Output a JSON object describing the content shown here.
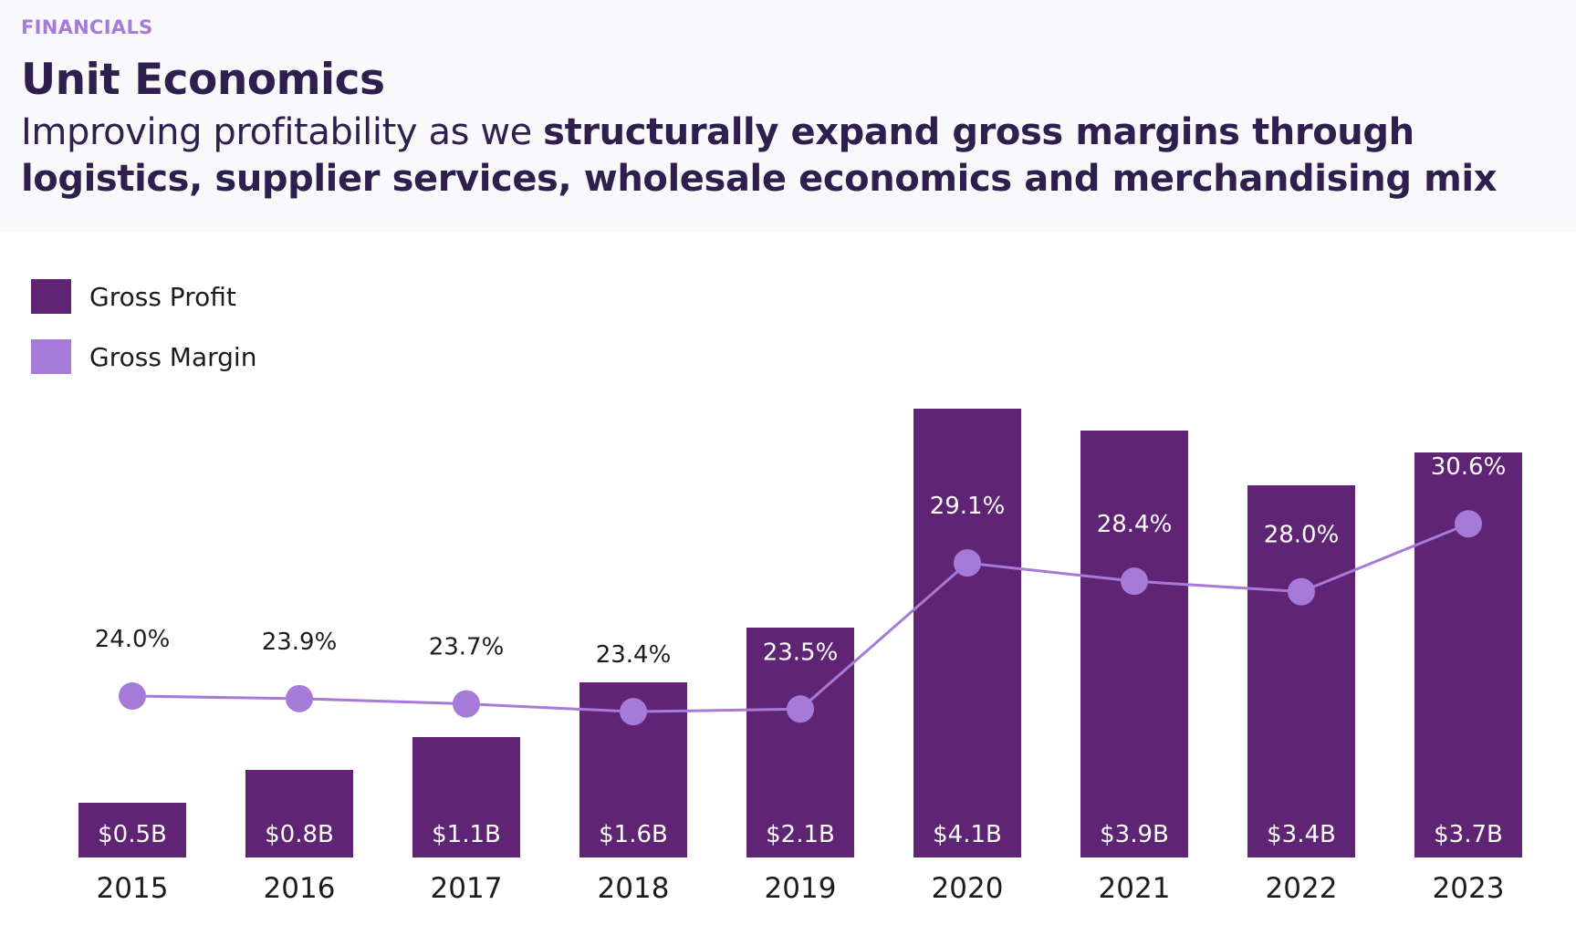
{
  "header": {
    "eyebrow": "FINANCIALS",
    "title": "Unit Economics",
    "subtitle_light": "Improving profitability as we ",
    "subtitle_bold": "structurally expand gross margins through logistics, supplier services, wholesale economics and merchandising mix"
  },
  "legend": [
    {
      "label": "Gross Profit",
      "color": "#5f2473"
    },
    {
      "label": "Gross Margin",
      "color": "#a67ad9"
    }
  ],
  "chart_data": {
    "type": "bar",
    "categories": [
      "2015",
      "2016",
      "2017",
      "2018",
      "2019",
      "2020",
      "2021",
      "2022",
      "2023"
    ],
    "series": [
      {
        "name": "Gross Profit",
        "type": "bar",
        "unit": "$B",
        "values": [
          0.5,
          0.8,
          1.1,
          1.6,
          2.1,
          4.1,
          3.9,
          3.4,
          3.7
        ],
        "labels": [
          "$0.5B",
          "$0.8B",
          "$1.1B",
          "$1.6B",
          "$2.1B",
          "$4.1B",
          "$3.9B",
          "$3.4B",
          "$3.7B"
        ],
        "color": "#5f2473"
      },
      {
        "name": "Gross Margin",
        "type": "line",
        "unit": "%",
        "values": [
          24.0,
          23.9,
          23.7,
          23.4,
          23.5,
          29.1,
          28.4,
          28.0,
          30.6
        ],
        "labels": [
          "24.0%",
          "23.9%",
          "23.7%",
          "23.4%",
          "23.5%",
          "29.1%",
          "28.4%",
          "28.0%",
          "30.6%"
        ],
        "color": "#a67ad9"
      }
    ],
    "grid": false,
    "legend_position": "top-left"
  }
}
